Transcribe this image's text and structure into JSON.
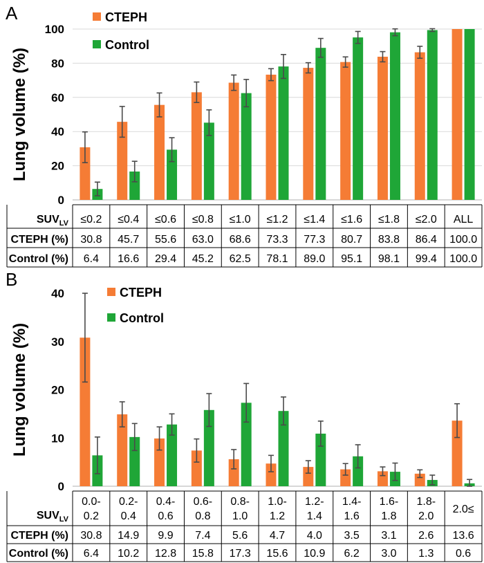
{
  "colors": {
    "cteph": "#F57C35",
    "control": "#1FA637",
    "error": "#4A4A4A",
    "grid": "#D9D9D9",
    "axis": "#BFBFBF",
    "table": "#000000"
  },
  "chart_data": [
    {
      "panel": "A",
      "type": "bar",
      "ylabel": "Lung volume (%)",
      "ylim": [
        0,
        100
      ],
      "yticks": [
        0,
        20,
        40,
        60,
        80,
        100
      ],
      "grid": true,
      "legend": [
        "CTEPH",
        "Control"
      ],
      "legend_position": "top-left",
      "categories": [
        "≤0.2",
        "≤0.4",
        "≤0.6",
        "≤0.8",
        "≤1.0",
        "≤1.2",
        "≤1.4",
        "≤1.6",
        "≤1.8",
        "≤2.0",
        "ALL"
      ],
      "series": [
        {
          "name": "CTEPH",
          "values": [
            30.8,
            45.7,
            55.6,
            63.0,
            68.6,
            73.3,
            77.3,
            80.7,
            83.8,
            86.4,
            100.0
          ],
          "errors": [
            9,
            9,
            7,
            6,
            4.5,
            3.5,
            3,
            3,
            3,
            3.5,
            0
          ]
        },
        {
          "name": "Control",
          "values": [
            6.4,
            16.6,
            29.4,
            45.2,
            62.5,
            78.1,
            89.0,
            95.1,
            98.1,
            99.4,
            100.0
          ],
          "errors": [
            4,
            6,
            7,
            7.5,
            8,
            7,
            5.5,
            3.5,
            2,
            0.8,
            0
          ]
        }
      ],
      "table": {
        "header_label": "SUV",
        "header_sub": "LV",
        "row_labels": [
          "CTEPH (%)",
          "Control (%)"
        ],
        "categories_text": [
          "≤0.2",
          "≤0.4",
          "≤0.6",
          "≤0.8",
          "≤1.0",
          "≤1.2",
          "≤1.4",
          "≤1.6",
          "≤1.8",
          "≤2.0",
          "ALL"
        ],
        "cteph_text": [
          "30.8",
          "45.7",
          "55.6",
          "63.0",
          "68.6",
          "73.3",
          "77.3",
          "80.7",
          "83.8",
          "86.4",
          "100.0"
        ],
        "control_text": [
          "6.4",
          "16.6",
          "29.4",
          "45.2",
          "62.5",
          "78.1",
          "89.0",
          "95.1",
          "98.1",
          "99.4",
          "100.0"
        ]
      }
    },
    {
      "panel": "B",
      "type": "bar",
      "ylabel": "Lung volume (%)",
      "ylim": [
        0,
        40
      ],
      "yticks": [
        0,
        10,
        20,
        30,
        40
      ],
      "grid": false,
      "legend": [
        "CTEPH",
        "Control"
      ],
      "legend_position": "top-center",
      "categories": [
        "0.0-0.2",
        "0.2-0.4",
        "0.4-0.6",
        "0.6-0.8",
        "0.8-1.0",
        "1.0-1.2",
        "1.2-1.4",
        "1.4-1.6",
        "1.6-1.8",
        "1.8-2.0",
        "2.0≤"
      ],
      "series": [
        {
          "name": "CTEPH",
          "values": [
            30.8,
            14.9,
            9.9,
            7.4,
            5.6,
            4.7,
            4.0,
            3.5,
            3.1,
            2.6,
            13.6
          ],
          "errors": [
            9.2,
            2.6,
            2.4,
            2.4,
            2.0,
            1.7,
            1.3,
            1.2,
            0.9,
            0.8,
            3.5
          ]
        },
        {
          "name": "Control",
          "values": [
            6.4,
            10.2,
            12.8,
            15.8,
            17.3,
            15.6,
            10.9,
            6.2,
            3.0,
            1.3,
            0.6
          ],
          "errors": [
            3.8,
            2.8,
            2.2,
            3.4,
            4.0,
            2.9,
            2.6,
            2.4,
            1.8,
            1.0,
            0.8
          ]
        }
      ],
      "table": {
        "header_label": "SUV",
        "header_sub": "LV",
        "row_labels": [
          "CTEPH (%)",
          "Control (%)"
        ],
        "categories_top": [
          "0.0-",
          "0.2-",
          "0.4-",
          "0.6-",
          "0.8-",
          "1.0-",
          "1.2-",
          "1.4-",
          "1.6-",
          "1.8-",
          "2.0≤"
        ],
        "categories_bottom": [
          "0.2",
          "0.4",
          "0.6",
          "0.8",
          "1.0",
          "1.2",
          "1.4",
          "1.6",
          "1.8",
          "2.0",
          ""
        ],
        "cteph_text": [
          "30.8",
          "14.9",
          "9.9",
          "7.4",
          "5.6",
          "4.7",
          "4.0",
          "3.5",
          "3.1",
          "2.6",
          "13.6"
        ],
        "control_text": [
          "6.4",
          "10.2",
          "12.8",
          "15.8",
          "17.3",
          "15.6",
          "10.9",
          "6.2",
          "3.0",
          "1.3",
          "0.6"
        ]
      }
    }
  ]
}
